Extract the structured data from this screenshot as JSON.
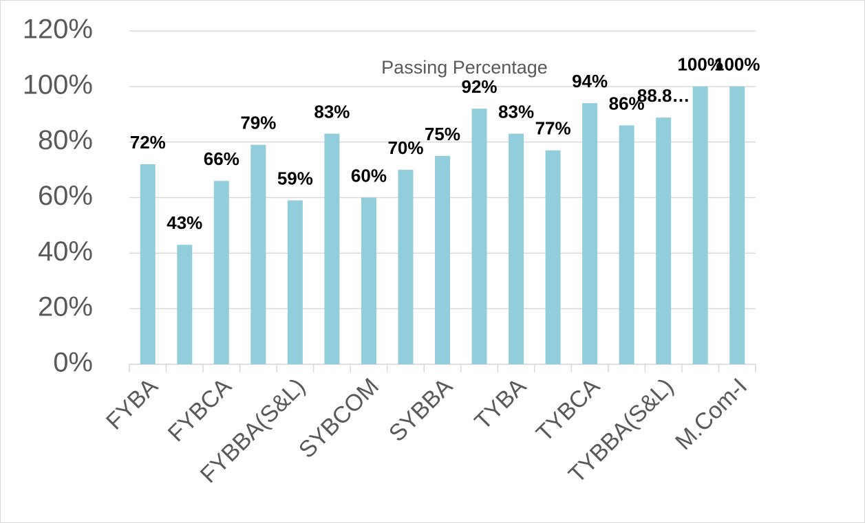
{
  "chart_data": {
    "type": "bar",
    "title": "Passing Percentage",
    "categories": [
      "FYBA",
      null,
      "FYBCA",
      null,
      "FYBBA(S&L)",
      null,
      "SYBCOM",
      null,
      "SYBBA",
      null,
      "TYBA",
      null,
      "TYBCA",
      null,
      "TYBBA(S&L)",
      null,
      "M.Com-I"
    ],
    "values": [
      72,
      43,
      66,
      79,
      59,
      83,
      60,
      70,
      75,
      92,
      83,
      77,
      94,
      86,
      88.8,
      100,
      100
    ],
    "value_labels": [
      "72%",
      "43%",
      "66%",
      "79%",
      "59%",
      "83%",
      "60%",
      "70%",
      "75%",
      "92%",
      "83%",
      "77%",
      "94%",
      "86%",
      "88.8…",
      "100%",
      "100%"
    ],
    "color": "#92cddc",
    "ylim": [
      0,
      120
    ],
    "yticks": [
      {
        "value": 0,
        "label": "0%"
      },
      {
        "value": 20,
        "label": "20%"
      },
      {
        "value": 40,
        "label": "40%"
      },
      {
        "value": 60,
        "label": "60%"
      },
      {
        "value": 80,
        "label": "80%"
      },
      {
        "value": 100,
        "label": "100%"
      },
      {
        "value": 120,
        "label": "120%"
      }
    ],
    "grid": true
  }
}
